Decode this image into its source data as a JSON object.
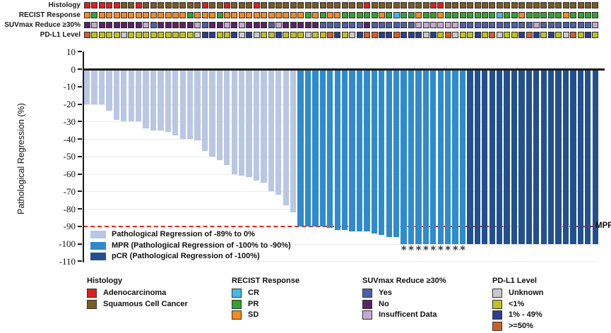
{
  "chart_data": {
    "type": "bar",
    "title": "",
    "ylabel": "Pathological Regression (%)",
    "ylim": [
      -110,
      10
    ],
    "yticks": [
      10,
      0,
      -10,
      -20,
      -30,
      -40,
      -50,
      -60,
      -70,
      -80,
      -90,
      -100,
      -110
    ],
    "n_patients": 70,
    "grid": true,
    "reference_line": {
      "y": -90,
      "label": "MPR",
      "style": "red-dashed"
    },
    "values": [
      -20,
      -20,
      -20,
      -24,
      -29,
      -30,
      -30,
      -30,
      -34,
      -35,
      -35,
      -36,
      -38,
      -40,
      -40,
      -41,
      -47,
      -50,
      -52,
      -55,
      -60,
      -61,
      -62,
      -64,
      -65,
      -70,
      -72,
      -78,
      -82,
      -90,
      -90,
      -90,
      -90,
      -91,
      -92,
      -92,
      -93,
      -93,
      -93,
      -94,
      -95,
      -96,
      -96,
      -100,
      -100,
      -100,
      -100,
      -100,
      -100,
      -100,
      -100,
      -100,
      -100,
      -100,
      -100,
      -100,
      -100,
      -100,
      -100,
      -100,
      -100,
      -100,
      -100,
      -100,
      -100,
      -100,
      -100,
      -100,
      -100,
      -100
    ],
    "bar_groups": "LLLLLLLLLLLLLLLLLLLLLLLLLLLLLMMMMMMMMMMMMMMMMMMMMMMMPPPPPPPPPPPPPPPPPP",
    "asterisk_bars": [
      44,
      45,
      46,
      47,
      48,
      49,
      50,
      51,
      52
    ],
    "asterisk_glyph": "*",
    "legend_position": "inside bottom-left"
  },
  "colors": {
    "bar_light": "#b9c7e3",
    "bar_mpr": "#2f8bcb",
    "bar_pcr": "#22508d",
    "mpr_line": "#e5261f",
    "adenocarcinoma": "#e21d1f",
    "squamous": "#7a5b20",
    "recist_cr": "#45b8e8",
    "recist_pr": "#35a12f",
    "recist_sd": "#f6891f",
    "suv_yes": "#4d5fa8",
    "suv_no": "#5a2366",
    "suv_insufficient": "#c4a9d1",
    "pdl1_unknown": "#c9c9c9",
    "pdl1_lt1": "#c0c11c",
    "pdl1_1_49": "#2b3e92",
    "pdl1_ge50": "#cf5f27"
  },
  "tracks": [
    {
      "label": "Histology",
      "sequence": "RRRRRBBRBBBBBBBBRBBRBBBRBBBBBBBBBBBBBBRBBBBBBBBRRBBBBBBBBBBBBBBBBBBBBB",
      "palette": {
        "R": "#e21d1f",
        "B": "#7a5b20"
      }
    },
    {
      "label": "RECIST Response",
      "sequence": "OGOOOOOOOOOOOOGOOOGOOOOOOOOOOOGOGOOGGGGGOGCGGOGGOGGGGGGGCGGOGGGGGOGGGG",
      "palette": {
        "O": "#f6891f",
        "G": "#35a12f",
        "C": "#45b8e8"
      }
    },
    {
      "label": "SUVmax Reduce ≥30%",
      "sequence": "NINNNNNNIYNNNNNIYNNININNNYINNNNNYYYYYYNYYYYYYIIIIIIYYYYYYYYYYIYYYYYYYI",
      "palette": {
        "Y": "#4d5fa8",
        "N": "#5a2366",
        "I": "#c4a9d1"
      }
    },
    {
      "label": "PD-L1 Level",
      "sequence": "HLLLLULLLLLLLLLUMMLLMUMULLMLLLULLHMLUMHHMMHMMMUMLHULLMLHULLMHMLMLUHLML",
      "palette": {
        "U": "#c9c9c9",
        "L": "#c0c11c",
        "M": "#2b3e92",
        "H": "#cf5f27"
      }
    }
  ],
  "inner_legend": [
    {
      "key": "L",
      "label": "Pathological Regression of -89% to 0%"
    },
    {
      "key": "M",
      "label": "MPR (Pathological Regression of -100% to -90%)"
    },
    {
      "key": "P",
      "label": "pCR (Pathological Regression of -100%)"
    }
  ],
  "mpr_label": "MPR",
  "bottom_legends": [
    {
      "title": "Histology",
      "items": [
        {
          "label": "Adenocarcinoma",
          "color": "#e21d1f"
        },
        {
          "label": "Squamous Cell Cancer",
          "color": "#7a5b20"
        }
      ]
    },
    {
      "title": "RECIST Response",
      "items": [
        {
          "label": "CR",
          "color": "#45b8e8"
        },
        {
          "label": "PR",
          "color": "#35a12f"
        },
        {
          "label": "SD",
          "color": "#f6891f"
        }
      ]
    },
    {
      "title": "SUVmax Reduce ≥30%",
      "items": [
        {
          "label": "Yes",
          "color": "#4d5fa8"
        },
        {
          "label": "No",
          "color": "#5a2366"
        },
        {
          "label": "Insufficent Data",
          "color": "#c4a9d1"
        }
      ]
    },
    {
      "title": "PD-L1 Level",
      "items": [
        {
          "label": "Unknown",
          "color": "#c9c9c9"
        },
        {
          "label": "<1%",
          "color": "#c0c11c"
        },
        {
          "label": "1% - 49%",
          "color": "#2b3e92"
        },
        {
          "label": ">=50%",
          "color": "#cf5f27"
        }
      ]
    }
  ]
}
